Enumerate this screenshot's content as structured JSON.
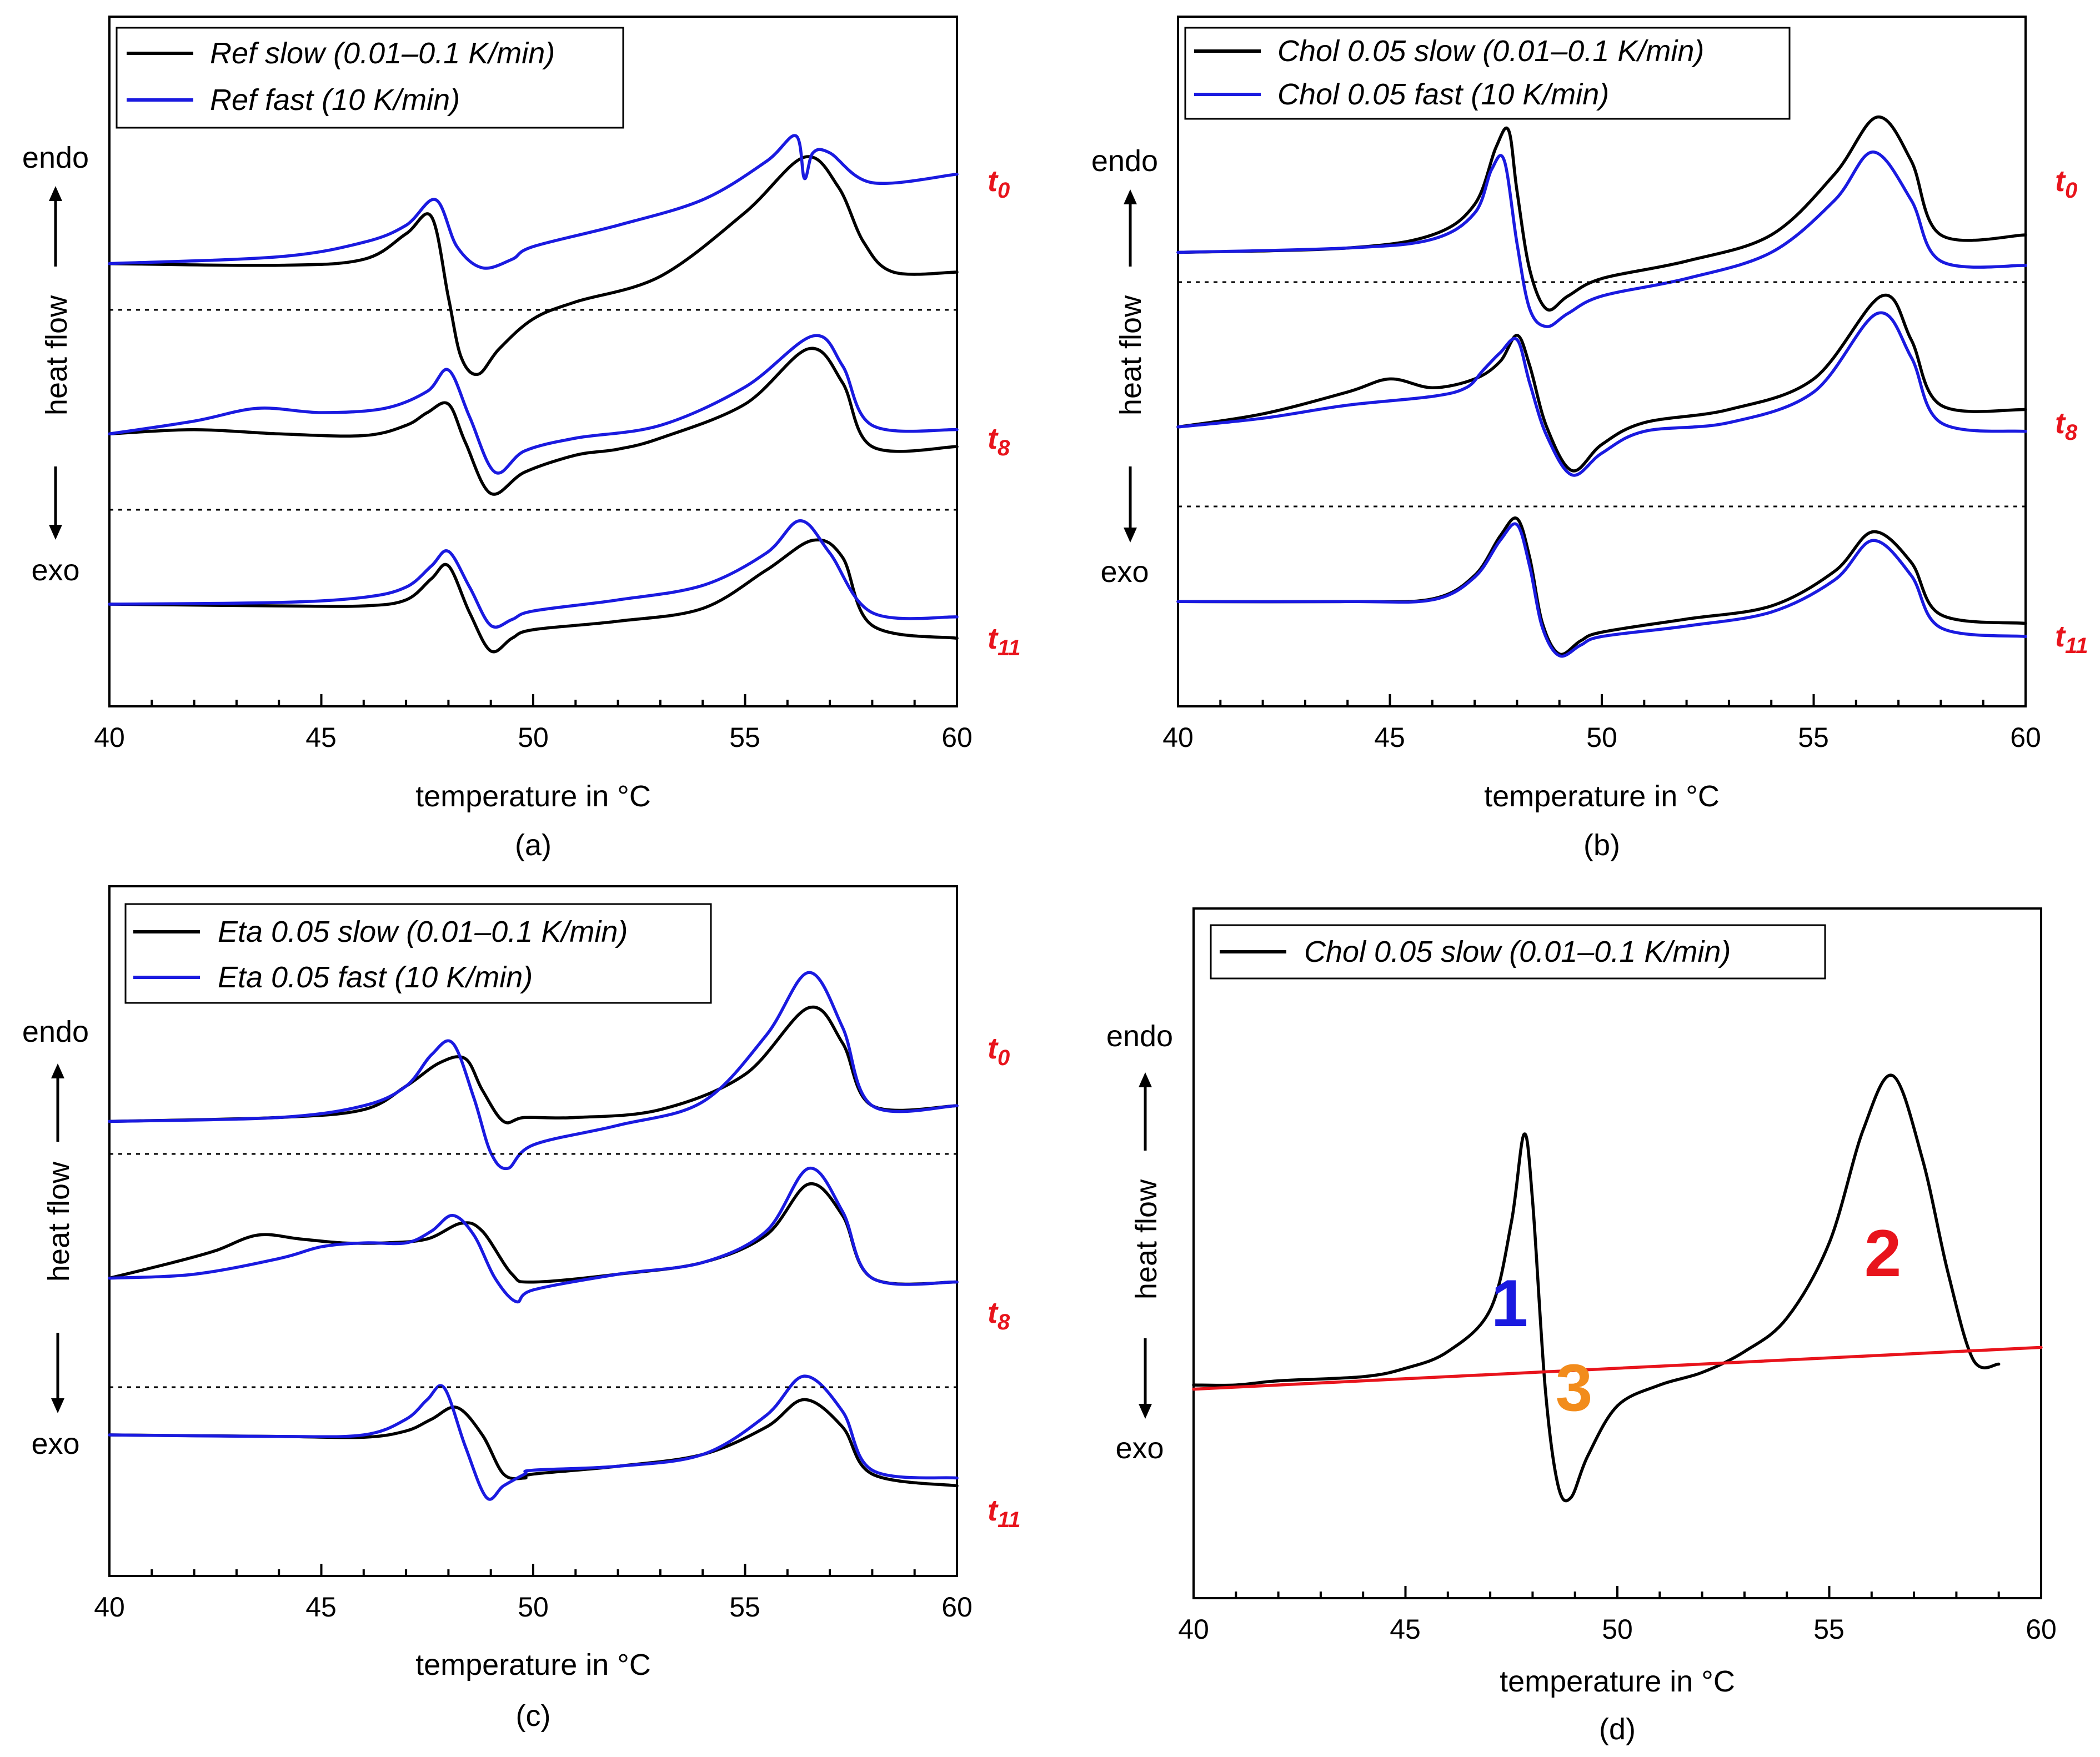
{
  "panels": [
    {
      "id": "a",
      "caption": "(a)",
      "xlabel": "temperature in °C",
      "legend": [
        "Ref slow (0.01–0.1 K/min)",
        "Ref fast (10 K/min)"
      ],
      "endo": "endo",
      "exo": "exo",
      "heatflow": "heat flow",
      "time_labels": [
        {
          "main": "t",
          "sub": "0"
        },
        {
          "main": "t",
          "sub": "8"
        },
        {
          "main": "t",
          "sub": "11"
        }
      ]
    },
    {
      "id": "b",
      "caption": "(b)",
      "xlabel": "temperature in °C",
      "legend": [
        "Chol 0.05 slow (0.01–0.1 K/min)",
        "Chol 0.05 fast (10 K/min)"
      ],
      "endo": "endo",
      "exo": "exo",
      "heatflow": "heat flow",
      "time_labels": [
        {
          "main": "t",
          "sub": "0"
        },
        {
          "main": "t",
          "sub": "8"
        },
        {
          "main": "t",
          "sub": "11"
        }
      ]
    },
    {
      "id": "c",
      "caption": "(c)",
      "xlabel": "temperature in °C",
      "legend": [
        "Eta 0.05 slow (0.01–0.1 K/min)",
        "Eta 0.05 fast (10 K/min)"
      ],
      "endo": "endo",
      "exo": "exo",
      "heatflow": "heat flow",
      "time_labels": [
        {
          "main": "t",
          "sub": "0"
        },
        {
          "main": "t",
          "sub": "8"
        },
        {
          "main": "t",
          "sub": "11"
        }
      ]
    },
    {
      "id": "d",
      "caption": "(d)",
      "xlabel": "temperature in °C",
      "legend": [
        "Chol 0.05 slow (0.01–0.1 K/min)"
      ],
      "endo": "endo",
      "exo": "exo",
      "heatflow": "heat flow",
      "region_labels": [
        "1",
        "2",
        "3"
      ]
    }
  ],
  "colors": {
    "slow": "#000000",
    "fast": "#1a1ae0",
    "baseline": "#e8141c",
    "region1": "#1a1ae0",
    "region2": "#e8141c",
    "region3": "#f28c1c",
    "time_label": "#e8141c"
  },
  "chart_data": [
    {
      "type": "line",
      "title": "(a)",
      "xlabel": "temperature in °C",
      "ylabel": "heat flow (endo up, exo down)",
      "xlim": [
        40,
        60
      ],
      "xticks": [
        40,
        45,
        50,
        55,
        60
      ],
      "series": [
        {
          "name": "Ref slow (0.01–0.1 K/min) t0",
          "x": [
            40,
            44,
            46,
            47,
            47.6,
            48.0,
            48.3,
            48.7,
            49.2,
            50,
            51,
            53,
            55,
            56.4,
            57.2,
            57.8,
            58.5,
            60
          ],
          "y": [
            5.0,
            4.98,
            5.05,
            5.35,
            5.55,
            4.6,
            3.9,
            3.7,
            4.0,
            4.35,
            4.55,
            4.85,
            5.6,
            6.25,
            5.9,
            5.25,
            4.9,
            4.9
          ]
        },
        {
          "name": "Ref fast (10 K/min) t0",
          "x": [
            40,
            44,
            46,
            47,
            47.7,
            48.2,
            48.8,
            49.5,
            50,
            52,
            54,
            55.5,
            56.2,
            56.4,
            56.6,
            57,
            58,
            60
          ],
          "y": [
            5.0,
            5.08,
            5.25,
            5.45,
            5.75,
            5.2,
            4.95,
            5.05,
            5.2,
            5.45,
            5.75,
            6.2,
            6.5,
            6.0,
            6.3,
            6.3,
            5.95,
            6.05
          ]
        },
        {
          "name": "Ref slow (0.01–0.1 K/min) t8",
          "x": [
            40,
            42,
            44,
            46,
            47,
            47.5,
            48.0,
            48.4,
            49.0,
            49.8,
            51,
            52,
            53,
            55,
            56.5,
            57.3,
            58,
            60
          ],
          "y": [
            3.0,
            3.05,
            3.0,
            2.98,
            3.1,
            3.25,
            3.35,
            2.9,
            2.3,
            2.55,
            2.75,
            2.82,
            2.95,
            3.35,
            4.0,
            3.6,
            2.85,
            2.85
          ]
        },
        {
          "name": "Ref fast (10 K/min) t8",
          "x": [
            40,
            42,
            43.5,
            45,
            46.5,
            47.5,
            48.0,
            48.5,
            49.1,
            49.8,
            51,
            53,
            55,
            56.6,
            57.3,
            58,
            60
          ],
          "y": [
            3.0,
            3.15,
            3.3,
            3.25,
            3.3,
            3.5,
            3.75,
            3.2,
            2.55,
            2.8,
            2.95,
            3.1,
            3.55,
            4.15,
            3.8,
            3.1,
            3.05
          ]
        },
        {
          "name": "Ref slow (0.01–0.1 K/min) t11",
          "x": [
            40,
            44,
            46,
            47,
            47.6,
            48.0,
            48.5,
            49.0,
            49.5,
            50,
            52,
            54,
            55.5,
            56.6,
            57.3,
            58,
            60
          ],
          "y": [
            1.0,
            0.98,
            0.98,
            1.05,
            1.3,
            1.45,
            0.9,
            0.45,
            0.6,
            0.7,
            0.8,
            0.95,
            1.4,
            1.75,
            1.55,
            0.75,
            0.6
          ]
        },
        {
          "name": "Ref fast (10 K/min) t11",
          "x": [
            40,
            44,
            46,
            47,
            47.6,
            48.0,
            48.5,
            49.0,
            49.5,
            50,
            52,
            54,
            55.5,
            56.3,
            57,
            58,
            60
          ],
          "y": [
            1.0,
            1.02,
            1.08,
            1.2,
            1.45,
            1.62,
            1.2,
            0.75,
            0.82,
            0.92,
            1.05,
            1.22,
            1.6,
            1.98,
            1.6,
            0.9,
            0.85
          ]
        }
      ]
    },
    {
      "type": "line",
      "title": "(b)",
      "xlabel": "temperature in °C",
      "ylabel": "heat flow (endo up, exo down)",
      "xlim": [
        40,
        60
      ],
      "xticks": [
        40,
        45,
        50,
        55,
        60
      ],
      "series": [
        {
          "name": "Chol 0.05 slow (0.01–0.1 K/min) t0",
          "x": [
            40,
            44,
            46,
            47,
            47.5,
            47.8,
            48.0,
            48.3,
            48.7,
            49.2,
            50,
            52,
            54,
            55.5,
            56.5,
            57.3,
            58,
            60
          ],
          "y": [
            5.0,
            5.05,
            5.2,
            5.55,
            6.2,
            6.4,
            5.7,
            4.8,
            4.35,
            4.5,
            4.7,
            4.9,
            5.2,
            5.9,
            6.55,
            6.05,
            5.2,
            5.2
          ]
        },
        {
          "name": "Chol 0.05 fast (10 K/min) t0",
          "x": [
            40,
            44,
            46,
            47,
            47.4,
            47.7,
            48.0,
            48.3,
            48.7,
            49.2,
            50,
            52,
            54,
            55.5,
            56.4,
            57.3,
            58,
            60
          ],
          "y": [
            5.0,
            5.05,
            5.15,
            5.45,
            5.95,
            6.05,
            5.1,
            4.35,
            4.15,
            4.3,
            4.5,
            4.7,
            5.0,
            5.6,
            6.15,
            5.6,
            4.9,
            4.85
          ]
        },
        {
          "name": "Chol 0.05 slow (0.01–0.1 K/min) t8",
          "x": [
            40,
            42,
            44,
            45,
            46,
            47,
            47.6,
            48.0,
            48.3,
            48.7,
            49.3,
            50,
            51,
            53,
            55,
            56.6,
            57.3,
            58,
            60
          ],
          "y": [
            3.0,
            3.15,
            3.4,
            3.55,
            3.45,
            3.55,
            3.75,
            4.05,
            3.7,
            3.0,
            2.5,
            2.8,
            3.05,
            3.2,
            3.55,
            4.5,
            4.0,
            3.25,
            3.2
          ]
        },
        {
          "name": "Chol 0.05 fast (10 K/min) t8",
          "x": [
            40,
            42,
            44,
            46,
            46.8,
            47.2,
            47.6,
            48.0,
            48.3,
            48.7,
            49.3,
            50,
            51,
            53,
            55,
            56.5,
            57.3,
            58,
            60
          ],
          "y": [
            3.0,
            3.1,
            3.25,
            3.35,
            3.45,
            3.65,
            3.85,
            4.0,
            3.5,
            2.9,
            2.45,
            2.7,
            2.95,
            3.05,
            3.4,
            4.3,
            3.8,
            3.05,
            2.95
          ]
        },
        {
          "name": "Chol 0.05 slow (0.01–0.1 K/min) t11",
          "x": [
            40,
            44,
            46,
            47,
            47.6,
            48.0,
            48.3,
            48.6,
            49.0,
            49.5,
            50,
            52,
            54,
            55.5,
            56.4,
            57.3,
            58,
            60
          ],
          "y": [
            1.0,
            1.0,
            1.03,
            1.3,
            1.75,
            1.95,
            1.5,
            0.75,
            0.4,
            0.55,
            0.65,
            0.8,
            0.95,
            1.35,
            1.8,
            1.45,
            0.85,
            0.75
          ]
        },
        {
          "name": "Chol 0.05 fast (10 K/min) t11",
          "x": [
            40,
            44,
            46,
            47,
            47.6,
            48.0,
            48.3,
            48.6,
            49.0,
            49.5,
            50,
            52,
            54,
            55.5,
            56.4,
            57.3,
            58,
            60
          ],
          "y": [
            1.0,
            1.0,
            1.02,
            1.28,
            1.7,
            1.88,
            1.4,
            0.7,
            0.38,
            0.5,
            0.6,
            0.72,
            0.88,
            1.25,
            1.7,
            1.3,
            0.7,
            0.6
          ]
        }
      ]
    },
    {
      "type": "line",
      "title": "(c)",
      "xlabel": "temperature in °C",
      "ylabel": "heat flow (endo up, exo down)",
      "xlim": [
        40,
        60
      ],
      "xticks": [
        40,
        45,
        50,
        55,
        60
      ],
      "series": [
        {
          "name": "Eta 0.05 slow (0.01–0.1 K/min) t0",
          "x": [
            40,
            44,
            46,
            47,
            47.8,
            48.4,
            48.8,
            49.3,
            49.8,
            51,
            53,
            55,
            56.5,
            57.3,
            58,
            60
          ],
          "y": [
            5.0,
            5.05,
            5.15,
            5.45,
            5.75,
            5.8,
            5.4,
            5.0,
            5.05,
            5.05,
            5.15,
            5.6,
            6.45,
            6.0,
            5.2,
            5.2
          ]
        },
        {
          "name": "Eta 0.05 fast (10 K/min) t0",
          "x": [
            40,
            44,
            46,
            47,
            47.6,
            48.1,
            48.6,
            49.0,
            49.4,
            50,
            52,
            54,
            55.5,
            56.5,
            57.3,
            58,
            60
          ],
          "y": [
            5.0,
            5.05,
            5.2,
            5.45,
            5.85,
            6.0,
            5.3,
            4.6,
            4.4,
            4.7,
            4.95,
            5.25,
            6.1,
            6.9,
            6.2,
            5.2,
            5.2
          ]
        },
        {
          "name": "Eta 0.05 slow (0.01–0.1 K/min) t8",
          "x": [
            40,
            41.5,
            42.5,
            43.5,
            44.5,
            45.5,
            46.5,
            47.5,
            48.3,
            48.8,
            49.5,
            50,
            52,
            54,
            55.5,
            56.5,
            57.3,
            58,
            60
          ],
          "y": [
            3.0,
            3.2,
            3.35,
            3.55,
            3.5,
            3.45,
            3.45,
            3.5,
            3.7,
            3.6,
            3.05,
            2.95,
            3.05,
            3.2,
            3.55,
            4.2,
            3.8,
            3.0,
            2.95
          ]
        },
        {
          "name": "Eta 0.05 fast (10 K/min) t8",
          "x": [
            40,
            42,
            44,
            45,
            46,
            47,
            47.6,
            48.1,
            48.6,
            49.1,
            49.6,
            50,
            52,
            54,
            55.5,
            56.5,
            57.3,
            58,
            60
          ],
          "y": [
            3.0,
            3.05,
            3.25,
            3.4,
            3.45,
            3.45,
            3.6,
            3.8,
            3.55,
            3.0,
            2.7,
            2.85,
            3.05,
            3.2,
            3.6,
            4.4,
            3.85,
            3.0,
            2.95
          ]
        },
        {
          "name": "Eta 0.05 slow (0.01–0.1 K/min) t11",
          "x": [
            40,
            44,
            46,
            47,
            47.6,
            48.2,
            48.8,
            49.3,
            49.8,
            50,
            52,
            54,
            55.5,
            56.4,
            57.3,
            58,
            60
          ],
          "y": [
            1.0,
            0.98,
            0.97,
            1.05,
            1.2,
            1.35,
            1.0,
            0.5,
            0.45,
            0.5,
            0.6,
            0.75,
            1.1,
            1.45,
            1.1,
            0.5,
            0.35
          ]
        },
        {
          "name": "Eta 0.05 fast (10 K/min) t11",
          "x": [
            40,
            44,
            46,
            47,
            47.5,
            47.9,
            48.4,
            48.9,
            49.3,
            49.8,
            50,
            52,
            54,
            55.5,
            56.4,
            57.3,
            58,
            60
          ],
          "y": [
            1.0,
            0.98,
            1.0,
            1.2,
            1.45,
            1.6,
            0.85,
            0.2,
            0.35,
            0.5,
            0.55,
            0.6,
            0.75,
            1.25,
            1.75,
            1.3,
            0.55,
            0.45
          ]
        }
      ]
    },
    {
      "type": "line",
      "title": "(d)",
      "xlabel": "temperature in °C",
      "ylabel": "heat flow (endo up, exo down)",
      "xlim": [
        40,
        60
      ],
      "xticks": [
        40,
        45,
        50,
        55,
        60
      ],
      "series": [
        {
          "name": "Chol 0.05 slow (0.01–0.1 K/min)",
          "x": [
            40,
            41,
            42,
            44,
            45,
            46,
            47,
            47.5,
            47.8,
            48.0,
            48.3,
            48.6,
            48.9,
            49.3,
            50,
            51,
            52,
            53,
            54,
            55,
            55.8,
            56.5,
            57.2,
            57.8,
            58.4,
            59
          ],
          "y": [
            0.1,
            0.1,
            0.2,
            0.3,
            0.5,
            0.9,
            1.9,
            4.0,
            6.1,
            4.5,
            0.0,
            -2.3,
            -2.6,
            -1.6,
            -0.4,
            0.1,
            0.4,
            0.9,
            1.7,
            3.5,
            6.2,
            7.5,
            5.5,
            2.8,
            0.7,
            0.6
          ]
        },
        {
          "name": "baseline",
          "x": [
            40,
            60
          ],
          "y": [
            0.0,
            1.0
          ]
        }
      ],
      "annotations": [
        "1",
        "2",
        "3"
      ]
    }
  ]
}
